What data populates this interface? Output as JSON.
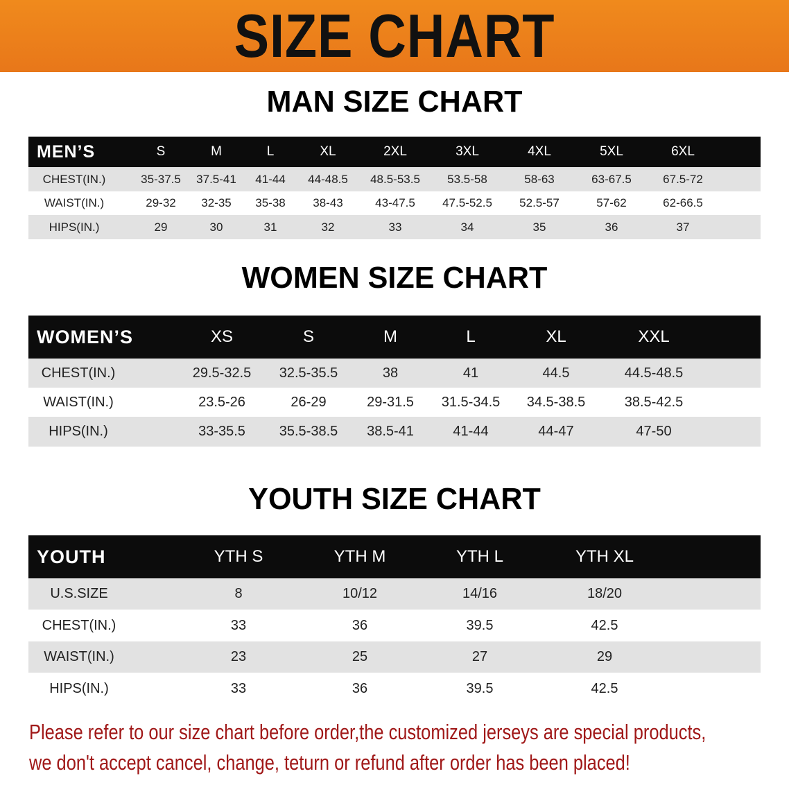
{
  "banner": {
    "title": "SIZE CHART",
    "color": "#ee821b"
  },
  "men": {
    "title": "MAN SIZE CHART",
    "header": "MEN’S",
    "sizes": [
      "S",
      "M",
      "L",
      "XL",
      "2XL",
      "3XL",
      "4XL",
      "5XL",
      "6XL"
    ],
    "rows": [
      {
        "label": "CHEST(IN.)",
        "values": [
          "35-37.5",
          "37.5-41",
          "41-44",
          "44-48.5",
          "48.5-53.5",
          "53.5-58",
          "58-63",
          "63-67.5",
          "67.5-72"
        ]
      },
      {
        "label": "WAIST(IN.)",
        "values": [
          "29-32",
          "32-35",
          "35-38",
          "38-43",
          "43-47.5",
          "47.5-52.5",
          "52.5-57",
          "57-62",
          "62-66.5"
        ]
      },
      {
        "label": "HIPS(IN.)",
        "values": [
          "29",
          "30",
          "31",
          "32",
          "33",
          "34",
          "35",
          "36",
          "37"
        ]
      }
    ]
  },
  "women": {
    "title": "WOMEN SIZE CHART",
    "header": "WOMEN’S",
    "sizes": [
      "XS",
      "S",
      "M",
      "L",
      "XL",
      "XXL"
    ],
    "rows": [
      {
        "label": "CHEST(IN.)",
        "values": [
          "29.5-32.5",
          "32.5-35.5",
          "38",
          "41",
          "44.5",
          "44.5-48.5"
        ]
      },
      {
        "label": "WAIST(IN.)",
        "values": [
          "23.5-26",
          "26-29",
          "29-31.5",
          "31.5-34.5",
          "34.5-38.5",
          "38.5-42.5"
        ]
      },
      {
        "label": "HIPS(IN.)",
        "values": [
          "33-35.5",
          "35.5-38.5",
          "38.5-41",
          "41-44",
          "44-47",
          "47-50"
        ]
      }
    ]
  },
  "youth": {
    "title": "YOUTH SIZE CHART",
    "header": "YOUTH",
    "sizes": [
      "YTH S",
      "YTH M",
      "YTH L",
      "YTH XL"
    ],
    "rows": [
      {
        "label": "U.S.SIZE",
        "values": [
          "8",
          "10/12",
          "14/16",
          "18/20"
        ]
      },
      {
        "label": "CHEST(IN.)",
        "values": [
          "33",
          "36",
          "39.5",
          "42.5"
        ]
      },
      {
        "label": "WAIST(IN.)",
        "values": [
          "23",
          "25",
          "27",
          "29"
        ]
      },
      {
        "label": "HIPS(IN.)",
        "values": [
          "33",
          "36",
          "39.5",
          "42.5"
        ]
      }
    ]
  },
  "notice": {
    "line1": "Please refer to our size chart before order,the customized jerseys are special products,",
    "line2": "we don't accept cancel, change, teturn or refund after order has been placed!",
    "color": "#a01818"
  }
}
